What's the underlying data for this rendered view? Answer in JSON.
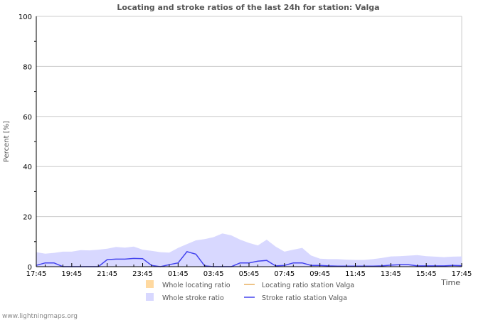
{
  "chart_data": {
    "type": "area",
    "title": "Locating and stroke ratios of the last 24h for station: Valga",
    "xlabel": "Time",
    "ylabel": "Percent   [%]",
    "ylim": [
      0,
      100
    ],
    "yticks": [
      "0",
      "20",
      "40",
      "60",
      "80",
      "100"
    ],
    "xticks": [
      "17:45",
      "19:45",
      "21:45",
      "23:45",
      "01:45",
      "03:45",
      "05:45",
      "07:45",
      "09:45",
      "11:45",
      "13:45",
      "15:45",
      "17:45"
    ],
    "interval_minutes": 30,
    "grid": true,
    "legend_position": "bottom",
    "series": [
      {
        "name": "Whole locating ratio",
        "color": "#ffd9a0",
        "style": "area",
        "values": [
          0.3,
          0.3,
          0.3,
          0.3,
          0.3,
          0.3,
          0.3,
          0.3,
          0.3,
          0.3,
          0.3,
          0.3,
          0.3,
          0.3,
          0.3,
          0.3,
          0.8,
          1.2,
          1,
          0.5,
          0.4,
          0.4,
          0.4,
          0.6,
          0.8,
          0.8,
          0.8,
          1,
          1,
          0.6,
          0.4,
          0.3,
          0.3,
          0.3,
          0.3,
          0.3,
          0.3,
          0.3,
          0.3,
          0.3,
          0.3,
          0.3,
          0.3,
          0.3,
          0.3,
          0.3,
          0.3,
          0.3,
          0.3
        ]
      },
      {
        "name": "Locating ratio station Valga",
        "color": "#e8b060",
        "style": "line",
        "values": [
          0.3,
          0.3,
          0.3,
          0.3,
          0.3,
          0.3,
          0.3,
          0.3,
          0.3,
          0.3,
          0.3,
          0.3,
          0.3,
          0.3,
          0.3,
          0.3,
          0.8,
          1.2,
          1,
          0.5,
          0.4,
          0.4,
          0.4,
          0.6,
          0.8,
          0.8,
          0.8,
          1,
          1,
          0.6,
          0.4,
          0.3,
          0.3,
          0.3,
          0.3,
          0.3,
          0.3,
          0.3,
          0.3,
          0.3,
          0.3,
          0.3,
          0.3,
          0.3,
          0.3,
          0.3,
          0.3,
          0.3,
          0.3
        ]
      },
      {
        "name": "Whole stroke ratio",
        "color": "#d8d8ff",
        "style": "area",
        "values": [
          5.8,
          5.2,
          5.5,
          6,
          6,
          6.6,
          6.5,
          6.8,
          7.2,
          7.9,
          7.6,
          8,
          6.8,
          6.3,
          5.8,
          5.6,
          7.5,
          9,
          10.5,
          11,
          11.8,
          13.3,
          12.5,
          10.8,
          9.5,
          8.5,
          10.8,
          8,
          6,
          6.8,
          7.5,
          4.5,
          3.2,
          3,
          3,
          2.8,
          2.7,
          2.7,
          3,
          3.5,
          4.1,
          4.2,
          4.4,
          4.6,
          4.2,
          4,
          3.8,
          4,
          4.1
        ]
      },
      {
        "name": "Stroke ratio station Valga",
        "color": "#4444ee",
        "style": "line",
        "values": [
          0.5,
          1.5,
          1.5,
          0,
          0,
          0,
          0,
          0,
          2.8,
          3,
          3,
          3.3,
          3.2,
          0.5,
          0,
          0.8,
          1.5,
          6,
          5,
          0.3,
          0,
          0,
          0,
          1.5,
          1.5,
          2.2,
          2.5,
          0.3,
          0.5,
          1.5,
          1.5,
          0.5,
          0.5,
          0.3,
          0.2,
          0.2,
          0.2,
          0.2,
          0.2,
          0.3,
          0.6,
          0.8,
          0.8,
          0.3,
          0.3,
          0.3,
          0.3,
          0.5,
          0.4
        ]
      }
    ]
  },
  "footer": "www.lightningmaps.org"
}
